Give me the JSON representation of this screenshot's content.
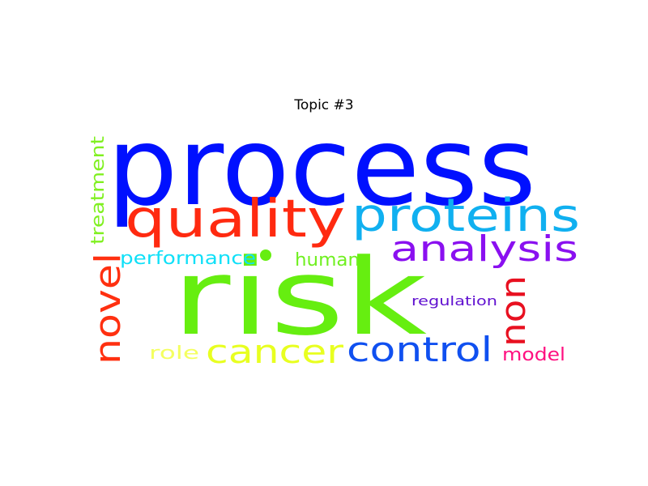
{
  "title": "Topic #3",
  "words": [
    {
      "text": "process",
      "color": "#0010ff",
      "weight": 1.0
    },
    {
      "text": "risk",
      "color": "#66ee10",
      "weight": 0.95
    },
    {
      "text": "quality",
      "color": "#ff2a10",
      "weight": 0.62
    },
    {
      "text": "proteins",
      "color": "#10b0f0",
      "weight": 0.55
    },
    {
      "text": "analysis",
      "color": "#8a10f0",
      "weight": 0.45
    },
    {
      "text": "cancer",
      "color": "#e8ff20",
      "weight": 0.44
    },
    {
      "text": "control",
      "color": "#1050f0",
      "weight": 0.43
    },
    {
      "text": "novel",
      "color": "#ff3010",
      "weight": 0.42
    },
    {
      "text": "non",
      "color": "#e81020",
      "weight": 0.4
    },
    {
      "text": "treatment",
      "color": "#80f020",
      "weight": 0.25
    },
    {
      "text": "performance",
      "color": "#10e0f8",
      "weight": 0.24
    },
    {
      "text": "human",
      "color": "#70f020",
      "weight": 0.23
    },
    {
      "text": "role",
      "color": "#f4ff60",
      "weight": 0.23
    },
    {
      "text": "model",
      "color": "#ff1080",
      "weight": 0.23
    },
    {
      "text": "regulation",
      "color": "#6010d0",
      "weight": 0.18
    }
  ],
  "dot": {
    "color": "#66ee10"
  }
}
